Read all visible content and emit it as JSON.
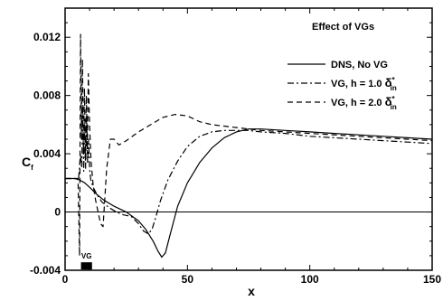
{
  "chart_data": {
    "type": "line",
    "title": "Effect of VGs",
    "xlabel": "x",
    "ylabel": "C",
    "ylabel_sub": "f",
    "xlim": [
      0,
      150
    ],
    "ylim": [
      -0.004,
      0.014
    ],
    "xticks": [
      0,
      50,
      100,
      150
    ],
    "xtick_labels": [
      "0",
      "50",
      "100",
      "150"
    ],
    "yticks": [
      -0.004,
      0,
      0.004,
      0.008,
      0.012
    ],
    "ytick_labels": [
      "-0.004",
      "0",
      "0.004",
      "0.008",
      "0.012"
    ],
    "grid": false,
    "legend_position": "top-right",
    "zero_line": true,
    "annotation": {
      "text": "VG",
      "x_range": [
        6.5,
        11
      ],
      "y": -0.0037
    },
    "series": [
      {
        "name": "DNS, No VG",
        "dash": "solid",
        "x": [
          0,
          4,
          6,
          8,
          10,
          13,
          16,
          20,
          25,
          30,
          33,
          36,
          38,
          39.5,
          41,
          43,
          46,
          50,
          55,
          60,
          65,
          70,
          75,
          80,
          90,
          100,
          110,
          120,
          130,
          140,
          150
        ],
        "y": [
          0.0023,
          0.0023,
          0.0022,
          0.002,
          0.0017,
          0.0012,
          0.0008,
          0.0004,
          0.0,
          -0.0006,
          -0.0012,
          -0.002,
          -0.0027,
          -0.0031,
          -0.0028,
          -0.0015,
          0.0004,
          0.002,
          0.0034,
          0.0044,
          0.0051,
          0.0055,
          0.0057,
          0.0057,
          0.0056,
          0.0055,
          0.0054,
          0.0053,
          0.0052,
          0.0051,
          0.005
        ]
      },
      {
        "name": "VG, h = 1.0 δ*in",
        "legend_text": "VG, h = 1.0",
        "legend_symbol": "δ",
        "legend_sup": "*",
        "legend_sub": "in",
        "dash": "dashdot",
        "x": [
          0,
          4,
          5.5,
          6.3,
          6.8,
          7.2,
          7.6,
          8.0,
          8.4,
          8.8,
          9.2,
          9.6,
          10.0,
          10.5,
          11.5,
          13,
          15,
          18,
          21,
          24,
          27,
          30,
          32,
          34,
          35.5,
          37,
          39,
          42,
          46,
          50,
          55,
          60,
          65,
          70,
          75,
          80,
          90,
          100,
          110,
          120,
          130,
          140,
          150
        ],
        "y": [
          0.0023,
          0.0023,
          0.0023,
          0.004,
          0.003,
          0.007,
          0.0028,
          0.006,
          0.003,
          0.0065,
          0.0033,
          0.005,
          0.003,
          0.0022,
          0.0017,
          0.0012,
          0.0007,
          0.0003,
          0.0,
          -0.0002,
          -0.0003,
          -0.0008,
          -0.0013,
          -0.0015,
          -0.0012,
          -0.0004,
          0.0008,
          0.0022,
          0.0035,
          0.0045,
          0.0052,
          0.0055,
          0.0056,
          0.0056,
          0.0056,
          0.0055,
          0.0054,
          0.0052,
          0.0051,
          0.005,
          0.0049,
          0.0048,
          0.0047
        ]
      },
      {
        "name": "VG, h = 2.0 δ*in",
        "legend_text": "VG, h = 2.0",
        "legend_symbol": "δ",
        "legend_sup": "*",
        "legend_sub": "in",
        "dash": "dash",
        "x": [
          0,
          4,
          5.3,
          5.9,
          6.3,
          6.7,
          7.1,
          7.5,
          7.9,
          8.3,
          8.7,
          9.1,
          9.5,
          10.0,
          10.6,
          11.5,
          12.5,
          13.5,
          14.5,
          15.5,
          17,
          18.5,
          20,
          22,
          25,
          30,
          35,
          40,
          45,
          50,
          55,
          60,
          70,
          80,
          90,
          100,
          110,
          120,
          130,
          140,
          150
        ],
        "y": [
          0.0023,
          0.0023,
          0.0023,
          -0.003,
          0.0122,
          0.005,
          0.0105,
          0.004,
          0.0085,
          0.0035,
          0.008,
          0.004,
          0.0095,
          0.006,
          0.0035,
          0.0018,
          0.0008,
          0.0,
          -0.0008,
          -0.001,
          0.003,
          0.005,
          0.005,
          0.0046,
          0.0049,
          0.0055,
          0.006,
          0.0065,
          0.0067,
          0.0066,
          0.0062,
          0.006,
          0.0058,
          0.0056,
          0.0055,
          0.0054,
          0.0053,
          0.0052,
          0.0051,
          0.005,
          0.0049
        ]
      }
    ]
  }
}
